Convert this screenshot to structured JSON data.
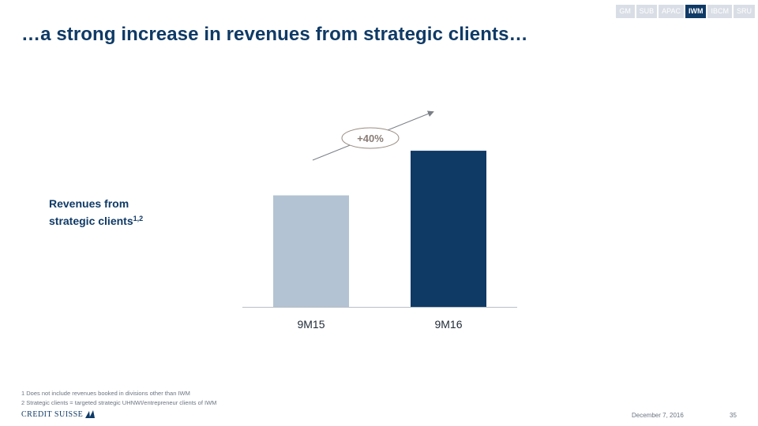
{
  "nav": {
    "tabs": [
      {
        "label": "GM",
        "active": false
      },
      {
        "label": "SUB",
        "active": false
      },
      {
        "label": "APAC",
        "active": false
      },
      {
        "label": "IWM",
        "active": true
      },
      {
        "label": "IBCM",
        "active": false
      },
      {
        "label": "SRU",
        "active": false
      }
    ]
  },
  "title": "…a strong increase in revenues from strategic clients…",
  "metric_label": {
    "line1": "Revenues from",
    "line2": "strategic clients",
    "superscript": "1,2"
  },
  "chart_data": {
    "type": "bar",
    "categories": [
      "9M15",
      "9M16"
    ],
    "values": [
      100,
      140
    ],
    "colors": [
      "#b3c3d3",
      "#0f3a66"
    ],
    "annotation": "+40%",
    "title": "",
    "xlabel": "",
    "ylabel": "",
    "ylim": [
      0,
      145
    ]
  },
  "footnotes": [
    "1 Does not include revenues booked in divisions other than IWM",
    "2 Strategic clients = targeted strategic UHNWI/entrepreneur clients of IWM"
  ],
  "logo": {
    "text": "CREDIT SUISSE"
  },
  "date": "December 7, 2016",
  "page_number": "35"
}
